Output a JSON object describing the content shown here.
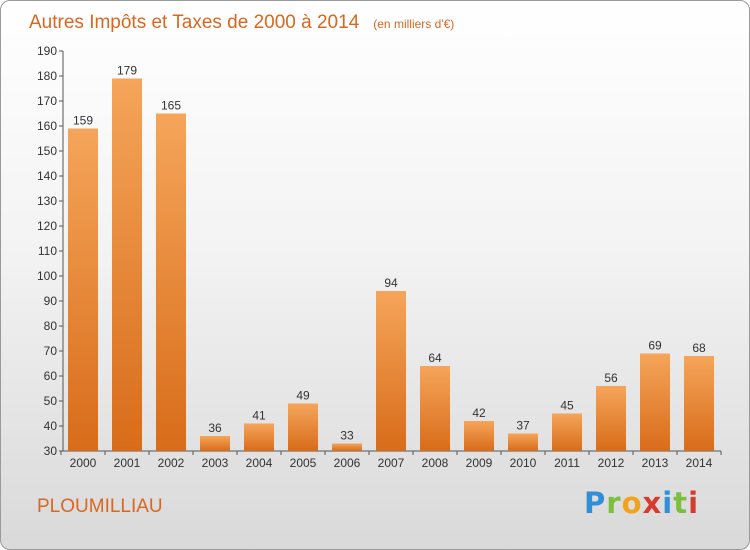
{
  "colors": {
    "bar_light": "#f5a55a",
    "bar_dark": "#d86c1a",
    "title": "#d9681e",
    "text": "#333333"
  },
  "chart_data": {
    "type": "bar",
    "title": "Autres Impôts et Taxes de 2000 à 2014",
    "subtitle": "(en milliers d'€)",
    "xlabel": "",
    "ylabel": "",
    "categories": [
      "2000",
      "2001",
      "2002",
      "2003",
      "2004",
      "2005",
      "2006",
      "2007",
      "2008",
      "2009",
      "2010",
      "2011",
      "2012",
      "2013",
      "2014"
    ],
    "values": [
      159,
      179,
      165,
      36,
      41,
      49,
      33,
      94,
      64,
      42,
      37,
      45,
      56,
      69,
      68
    ],
    "value_labels": [
      "159",
      "179",
      "165",
      "36",
      "41",
      "49",
      "33",
      "94",
      "64",
      "42",
      "37",
      "45",
      "56",
      "69",
      "68"
    ],
    "ylim": [
      30,
      190
    ],
    "yticks": [
      30,
      40,
      50,
      60,
      70,
      80,
      90,
      100,
      110,
      120,
      130,
      140,
      150,
      160,
      170,
      180,
      190
    ],
    "ytick_labels": [
      "30",
      "40",
      "50",
      "60",
      "70",
      "80",
      "90",
      "100",
      "110",
      "120",
      "130",
      "140",
      "150",
      "160",
      "170",
      "180",
      "190"
    ],
    "grid": false,
    "legend": "none"
  },
  "footer": {
    "commune": "PLOUMILLIAU",
    "brand": {
      "p": "P",
      "r": "r",
      "o": "o",
      "x": "x",
      "i1": "i",
      "t": "t",
      "i2": "i"
    }
  }
}
